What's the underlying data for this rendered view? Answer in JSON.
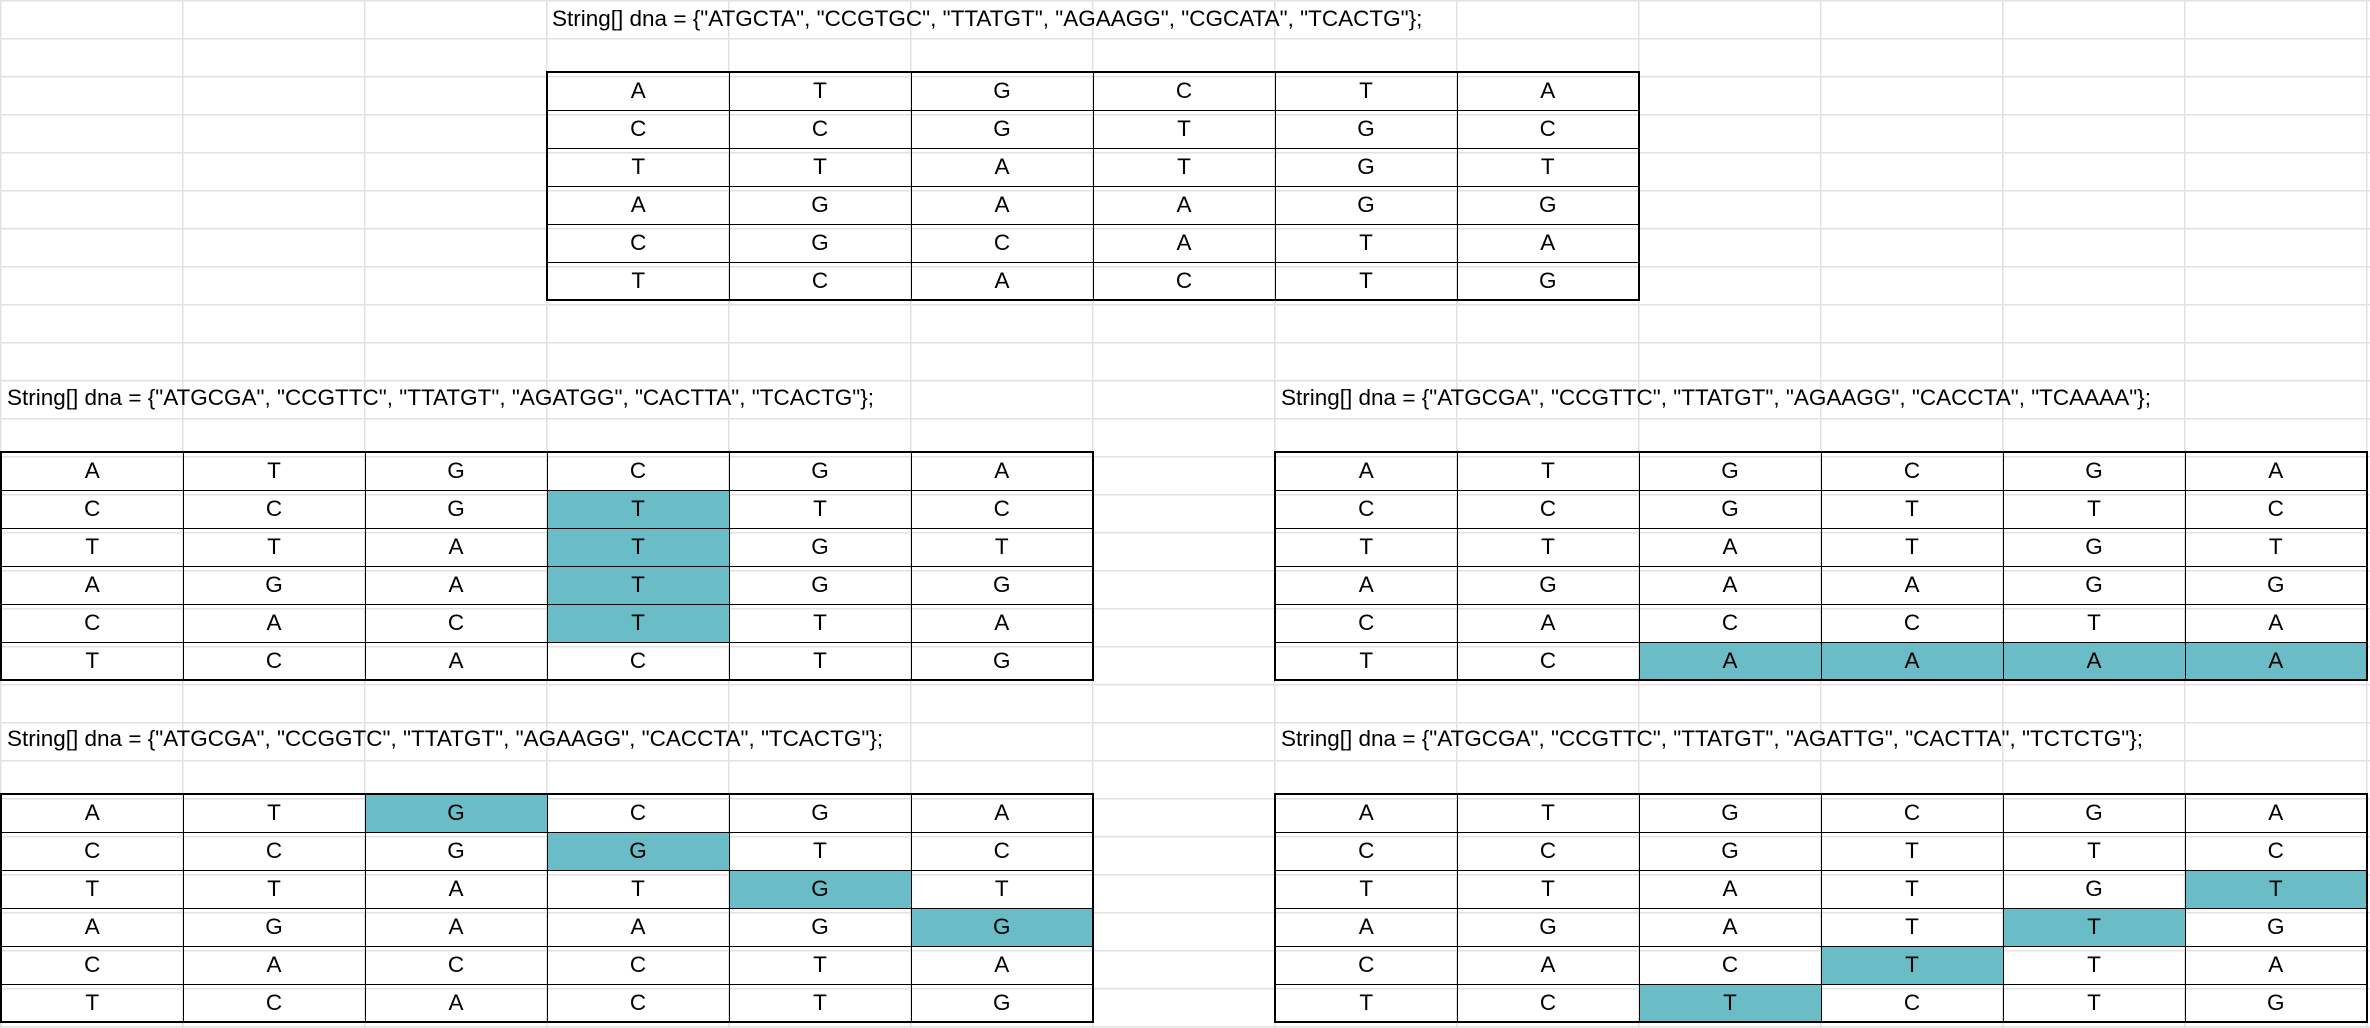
{
  "sheet": {
    "blocks": [
      {
        "caption": "String[] dna = {\"ATGCTA\", \"CCGTGC\", \"TTATGT\", \"AGAAGG\", \"CGCATA\", \"TCACTG\"};",
        "rows": [
          [
            "A",
            "T",
            "G",
            "C",
            "T",
            "A"
          ],
          [
            "C",
            "C",
            "G",
            "T",
            "G",
            "C"
          ],
          [
            "T",
            "T",
            "A",
            "T",
            "G",
            "T"
          ],
          [
            "A",
            "G",
            "A",
            "A",
            "G",
            "G"
          ],
          [
            "C",
            "G",
            "C",
            "A",
            "T",
            "A"
          ],
          [
            "T",
            "C",
            "A",
            "C",
            "T",
            "G"
          ]
        ],
        "highlighted": [],
        "highlight_color": "#6abdc7"
      },
      {
        "caption": "String[] dna = {\"ATGCGA\", \"CCGTTC\", \"TTATGT\", \"AGATGG\", \"CACTTA\", \"TCACTG\"};",
        "rows": [
          [
            "A",
            "T",
            "G",
            "C",
            "G",
            "A"
          ],
          [
            "C",
            "C",
            "G",
            "T",
            "T",
            "C"
          ],
          [
            "T",
            "T",
            "A",
            "T",
            "G",
            "T"
          ],
          [
            "A",
            "G",
            "A",
            "T",
            "G",
            "G"
          ],
          [
            "C",
            "A",
            "C",
            "T",
            "T",
            "A"
          ],
          [
            "T",
            "C",
            "A",
            "C",
            "T",
            "G"
          ]
        ],
        "highlighted": [
          [
            1,
            3
          ],
          [
            2,
            3
          ],
          [
            3,
            3
          ],
          [
            4,
            3
          ]
        ],
        "highlight_color": "#6abdc7"
      },
      {
        "caption": "String[] dna = {\"ATGCGA\", \"CCGTTC\", \"TTATGT\", \"AGAAGG\", \"CACCTA\", \"TCAAAA\"};",
        "rows": [
          [
            "A",
            "T",
            "G",
            "C",
            "G",
            "A"
          ],
          [
            "C",
            "C",
            "G",
            "T",
            "T",
            "C"
          ],
          [
            "T",
            "T",
            "A",
            "T",
            "G",
            "T"
          ],
          [
            "A",
            "G",
            "A",
            "A",
            "G",
            "G"
          ],
          [
            "C",
            "A",
            "C",
            "C",
            "T",
            "A"
          ],
          [
            "T",
            "C",
            "A",
            "A",
            "A",
            "A"
          ]
        ],
        "highlighted": [
          [
            5,
            2
          ],
          [
            5,
            3
          ],
          [
            5,
            4
          ],
          [
            5,
            5
          ]
        ],
        "highlight_color": "#6abdc7"
      },
      {
        "caption": "String[] dna = {\"ATGCGA\", \"CCGGTC\", \"TTATGT\", \"AGAAGG\", \"CACCTA\", \"TCACTG\"};",
        "rows": [
          [
            "A",
            "T",
            "G",
            "C",
            "G",
            "A"
          ],
          [
            "C",
            "C",
            "G",
            "G",
            "T",
            "C"
          ],
          [
            "T",
            "T",
            "A",
            "T",
            "G",
            "T"
          ],
          [
            "A",
            "G",
            "A",
            "A",
            "G",
            "G"
          ],
          [
            "C",
            "A",
            "C",
            "C",
            "T",
            "A"
          ],
          [
            "T",
            "C",
            "A",
            "C",
            "T",
            "G"
          ]
        ],
        "highlighted": [
          [
            0,
            2
          ],
          [
            1,
            3
          ],
          [
            2,
            4
          ],
          [
            3,
            5
          ]
        ],
        "highlight_color": "#6abdc7"
      },
      {
        "caption": "String[] dna = {\"ATGCGA\", \"CCGTTC\", \"TTATGT\", \"AGATTG\", \"CACTTA\", \"TCTCTG\"};",
        "rows": [
          [
            "A",
            "T",
            "G",
            "C",
            "G",
            "A"
          ],
          [
            "C",
            "C",
            "G",
            "T",
            "T",
            "C"
          ],
          [
            "T",
            "T",
            "A",
            "T",
            "G",
            "T"
          ],
          [
            "A",
            "G",
            "A",
            "T",
            "T",
            "G"
          ],
          [
            "C",
            "A",
            "C",
            "T",
            "T",
            "A"
          ],
          [
            "T",
            "C",
            "T",
            "C",
            "T",
            "G"
          ]
        ],
        "highlighted": [
          [
            2,
            5
          ],
          [
            3,
            4
          ],
          [
            4,
            3
          ],
          [
            5,
            2
          ]
        ],
        "highlight_color": "#6abdc7"
      }
    ]
  }
}
